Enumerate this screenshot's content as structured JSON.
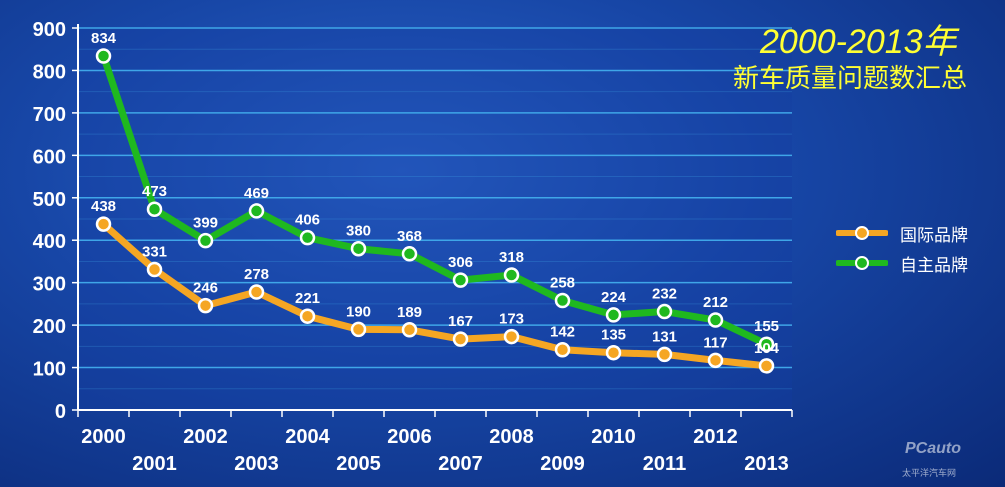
{
  "chart_data": {
    "type": "line",
    "title_line1": "2000-2013年",
    "title_line2": "新车质量问题数汇总",
    "categories": [
      "2000",
      "2001",
      "2002",
      "2003",
      "2004",
      "2005",
      "2006",
      "2007",
      "2008",
      "2009",
      "2010",
      "2011",
      "2012",
      "2013"
    ],
    "y_ticks": [
      "0",
      "100",
      "200",
      "300",
      "400",
      "500",
      "600",
      "700",
      "800",
      "900"
    ],
    "ylim": [
      0,
      900
    ],
    "grid": true,
    "legend_position": "right",
    "series": [
      {
        "name": "国际品牌",
        "color": "#f5a623",
        "values": [
          438,
          331,
          246,
          278,
          221,
          190,
          189,
          167,
          173,
          142,
          135,
          131,
          117,
          104
        ]
      },
      {
        "name": "自主品牌",
        "color": "#1fb81f",
        "values": [
          834,
          473,
          399,
          469,
          406,
          380,
          368,
          306,
          318,
          258,
          224,
          232,
          212,
          155
        ]
      }
    ]
  },
  "watermark": {
    "brand": "PCauto",
    "sub": "太平洋汽车网"
  }
}
